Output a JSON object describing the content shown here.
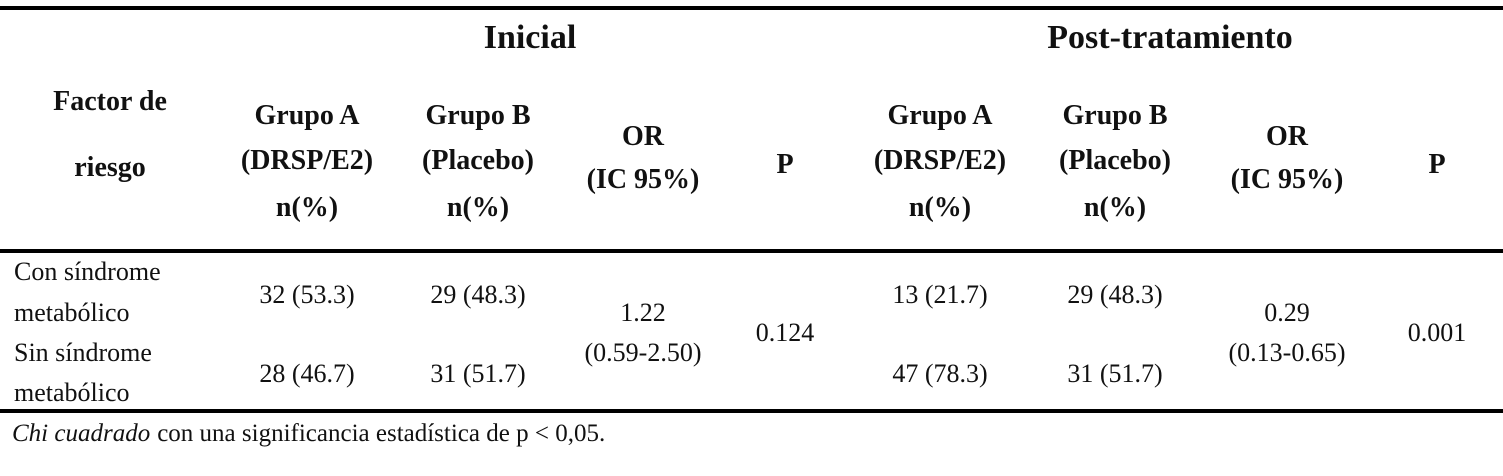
{
  "table": {
    "group_headers": [
      "Inicial",
      "Post-tratamiento"
    ],
    "factor_header": [
      "Factor de",
      "riesgo"
    ],
    "column_headers": [
      [
        "Grupo A",
        "(DRSP/E2)",
        "n(%)"
      ],
      [
        "Grupo B",
        "(Placebo)",
        "n(%)"
      ],
      [
        "OR",
        "(IC 95%)"
      ],
      [
        "P"
      ],
      [
        "Grupo A",
        "(DRSP/E2)",
        "n(%)"
      ],
      [
        "Grupo B",
        "(Placebo)",
        "n(%)"
      ],
      [
        "OR",
        "(IC 95%)"
      ],
      [
        "P"
      ]
    ],
    "rows": [
      {
        "factor": [
          "Con síndrome",
          "metabólico"
        ],
        "cells": [
          "32 (53.3)",
          "29 (48.3)",
          "13 (21.7)",
          "29 (48.3)"
        ]
      },
      {
        "factor": [
          "Sin síndrome",
          "metabólico"
        ],
        "cells": [
          "28 (46.7)",
          "31 (51.7)",
          "47 (78.3)",
          "31 (51.7)"
        ]
      }
    ],
    "merged": [
      {
        "or": [
          "1.22",
          "(0.59-2.50)"
        ],
        "p": "0.124"
      },
      {
        "or": [
          "0.29",
          "(0.13-0.65)"
        ],
        "p": "0.001"
      }
    ]
  },
  "footnote": {
    "italic": "Chi cuadrado",
    "text": "con una significancia estadística de p < 0,05."
  }
}
